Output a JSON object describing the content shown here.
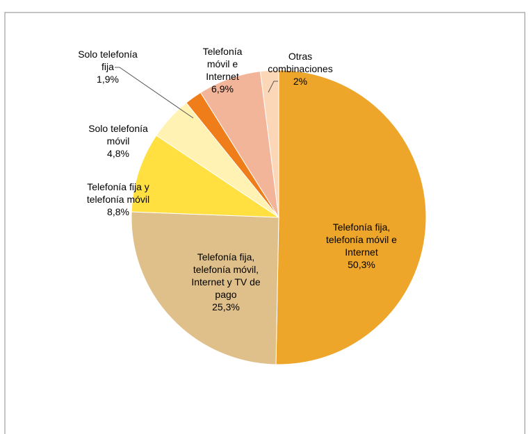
{
  "chart_data": {
    "type": "pie",
    "categories": [
      "Telefonía fija,\ntelefonía móvil e\nInternet",
      "Telefonía fija,\ntelefonía móvil,\nInternet y TV de\npago",
      "Telefonía fija y\ntelefonía móvil",
      "Solo telefonía\nmóvil",
      "Solo telefonía\nfija",
      "Telefonía\nmóvil e\nInternet",
      "Otras\ncombinaciones"
    ],
    "values": [
      50.3,
      25.3,
      8.8,
      4.8,
      1.9,
      6.9,
      2
    ],
    "value_labels": [
      "50,3%",
      "25,3%",
      "8,8%",
      "4,8%",
      "1,9%",
      "6,9%",
      "2%"
    ],
    "colors": [
      "#eda52a",
      "#dfc08a",
      "#ffe040",
      "#fff2b3",
      "#ee7d1a",
      "#f3b59a",
      "#fbd7b8"
    ]
  }
}
